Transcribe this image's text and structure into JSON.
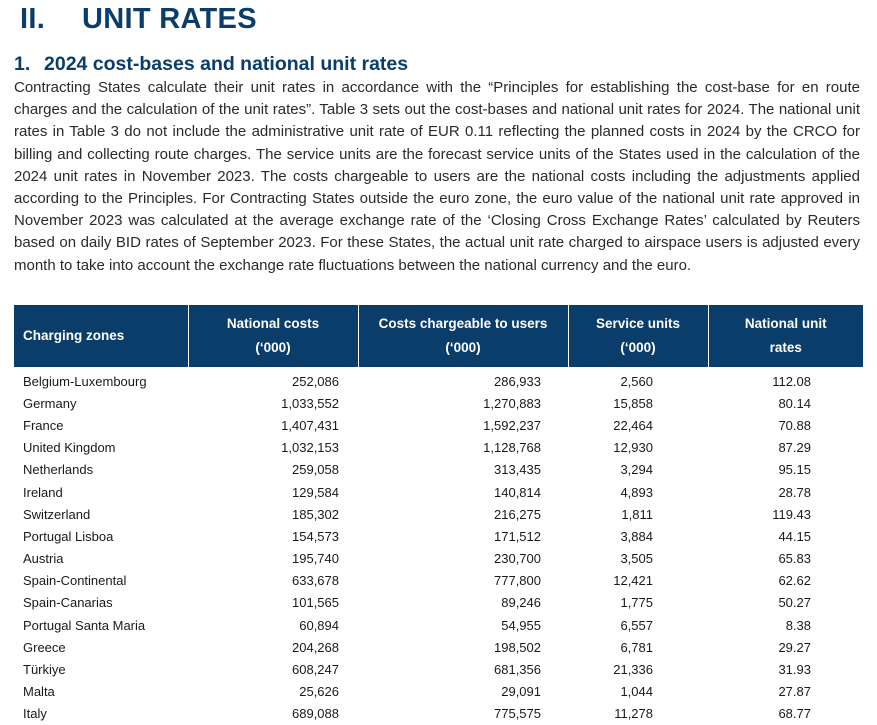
{
  "section": {
    "number": "II.",
    "title": "UNIT RATES"
  },
  "subsection": {
    "number": "1.",
    "title": "2024 cost-bases and national unit rates"
  },
  "paragraph": "Contracting States calculate their unit rates in accordance with the “Principles for establishing the cost-base for en route charges and the calculation of the unit rates”. Table 3 sets out the cost-bases and national unit rates for 2024. The national unit rates in Table 3 do not include the administrative unit rate of EUR 0.11 reflecting the planned costs in 2024 by the CRCO for billing and collecting route charges. The service units are the forecast service units of the States used in the calculation of the 2024 unit rates in November 2023. The costs chargeable to users are the national costs including the adjustments applied according to the Principles.  For Contracting States outside the euro zone, the euro value of the national unit rate approved in November 2023 was calculated at the average exchange rate of the ‘Closing Cross Exchange Rates’ calculated by Reuters based on daily BID rates of September 2023.  For these States, the actual unit rate charged to airspace users is adjusted every month to take into account the exchange rate fluctuations between the national currency and the euro.",
  "table": {
    "headers": {
      "zone": "Charging zones",
      "national_costs": {
        "line1": "National costs",
        "line2": "(‘000)"
      },
      "chargeable": {
        "line1": "Costs chargeable to users",
        "line2": "(‘000)"
      },
      "service_units": {
        "line1": "Service units",
        "line2": "(‘000)"
      },
      "unit_rates": {
        "line1": "National unit",
        "line2": "rates"
      }
    },
    "rows": [
      {
        "zone": "Belgium-Luxembourg",
        "national_costs": "252,086",
        "chargeable": "286,933",
        "service_units": "2,560",
        "unit_rate": "112.08"
      },
      {
        "zone": "Germany",
        "national_costs": "1,033,552",
        "chargeable": "1,270,883",
        "service_units": "15,858",
        "unit_rate": "80.14"
      },
      {
        "zone": "France",
        "national_costs": "1,407,431",
        "chargeable": "1,592,237",
        "service_units": "22,464",
        "unit_rate": "70.88"
      },
      {
        "zone": "United Kingdom",
        "national_costs": "1,032,153",
        "chargeable": "1,128,768",
        "service_units": "12,930",
        "unit_rate": "87.29"
      },
      {
        "zone": "Netherlands",
        "national_costs": "259,058",
        "chargeable": "313,435",
        "service_units": "3,294",
        "unit_rate": "95.15"
      },
      {
        "zone": "Ireland",
        "national_costs": "129,584",
        "chargeable": "140,814",
        "service_units": "4,893",
        "unit_rate": "28.78"
      },
      {
        "zone": "Switzerland",
        "national_costs": "185,302",
        "chargeable": "216,275",
        "service_units": "1,811",
        "unit_rate": "119.43"
      },
      {
        "zone": "Portugal Lisboa",
        "national_costs": "154,573",
        "chargeable": "171,512",
        "service_units": "3,884",
        "unit_rate": "44.15"
      },
      {
        "zone": "Austria",
        "national_costs": "195,740",
        "chargeable": "230,700",
        "service_units": "3,505",
        "unit_rate": "65.83"
      },
      {
        "zone": "Spain-Continental",
        "national_costs": "633,678",
        "chargeable": "777,800",
        "service_units": "12,421",
        "unit_rate": "62.62"
      },
      {
        "zone": "Spain-Canarias",
        "national_costs": "101,565",
        "chargeable": "89,246",
        "service_units": "1,775",
        "unit_rate": "50.27"
      },
      {
        "zone": "Portugal Santa Maria",
        "national_costs": "60,894",
        "chargeable": "54,955",
        "service_units": "6,557",
        "unit_rate": "8.38"
      },
      {
        "zone": "Greece",
        "national_costs": "204,268",
        "chargeable": "198,502",
        "service_units": "6,781",
        "unit_rate": "29.27"
      },
      {
        "zone": "Türkiye",
        "national_costs": "608,247",
        "chargeable": "681,356",
        "service_units": "21,336",
        "unit_rate": "31.93"
      },
      {
        "zone": "Malta",
        "national_costs": "25,626",
        "chargeable": "29,091",
        "service_units": "1,044",
        "unit_rate": "27.87"
      },
      {
        "zone": "Italy",
        "national_costs": "689,088",
        "chargeable": "775,575",
        "service_units": "11,278",
        "unit_rate": "68.77"
      }
    ]
  },
  "colors": {
    "heading": "#0b3d6b",
    "table_header_bg": "#0b3d6b",
    "table_header_text": "#ffffff"
  }
}
